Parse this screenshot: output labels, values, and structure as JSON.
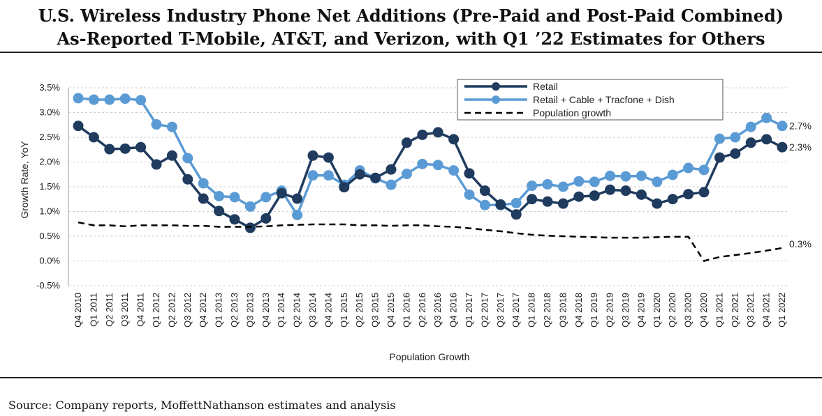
{
  "title_line1": "U.S. Wireless Industry Phone Net Additions (Pre-Paid and Post-Paid Combined)",
  "title_line2": "As-Reported T-Mobile, AT&T, and Verizon, with Q1 ’22 Estimates for Others",
  "source": "Source: Company reports, MoffettNathanson estimates and analysis",
  "colors": {
    "retail": "#1f3b5e",
    "combined": "#5b9bd5",
    "population": "#000000"
  },
  "chart_data": {
    "type": "line",
    "xlabel": "Population Growth",
    "ylabel": "Growth Rate, YoY",
    "ylim": [
      -0.5,
      3.5
    ],
    "yticks": [
      "-0.5%",
      "0.0%",
      "0.5%",
      "1.0%",
      "1.5%",
      "2.0%",
      "2.5%",
      "3.0%",
      "3.5%"
    ],
    "grid": true,
    "legend_position": "top-right",
    "categories": [
      "Q4 2010",
      "Q1 2011",
      "Q2 2011",
      "Q3 2011",
      "Q4 2011",
      "Q1 2012",
      "Q2 2012",
      "Q3 2012",
      "Q4 2012",
      "Q1 2013",
      "Q2 2013",
      "Q3 2013",
      "Q4 2013",
      "Q1 2014",
      "Q2 2014",
      "Q3 2014",
      "Q4 2014",
      "Q1 2015",
      "Q2 2015",
      "Q3 2015",
      "Q4 2015",
      "Q1 2016",
      "Q2 2016",
      "Q3 2016",
      "Q4 2016",
      "Q1 2017",
      "Q2 2017",
      "Q3 2017",
      "Q4 2017",
      "Q1 2018",
      "Q2 2018",
      "Q3 2018",
      "Q4 2018",
      "Q1 2019",
      "Q2 2019",
      "Q3 2019",
      "Q4 2019",
      "Q1 2020",
      "Q2 2020",
      "Q3 2020",
      "Q4 2020",
      "Q1 2021",
      "Q2 2021",
      "Q3 2021",
      "Q4 2021",
      "Q1 2022"
    ],
    "series": [
      {
        "name": "Retail",
        "marker": true,
        "values": [
          2.73,
          2.5,
          2.26,
          2.27,
          2.3,
          1.95,
          2.13,
          1.65,
          1.26,
          1.01,
          0.84,
          0.67,
          0.86,
          1.37,
          1.26,
          2.13,
          2.09,
          1.49,
          1.75,
          1.68,
          1.85,
          2.39,
          2.55,
          2.6,
          2.46,
          1.77,
          1.42,
          1.14,
          0.94,
          1.25,
          1.2,
          1.16,
          1.3,
          1.32,
          1.44,
          1.42,
          1.34,
          1.16,
          1.25,
          1.35,
          1.39,
          2.09,
          2.17,
          2.39,
          2.46,
          2.3
        ]
      },
      {
        "name": "Retail + Cable + Tracfone + Dish",
        "marker": true,
        "values": [
          3.29,
          3.26,
          3.26,
          3.28,
          3.25,
          2.76,
          2.71,
          2.08,
          1.57,
          1.31,
          1.29,
          1.1,
          1.29,
          1.42,
          0.93,
          1.73,
          1.73,
          1.54,
          1.83,
          1.67,
          1.54,
          1.76,
          1.96,
          1.94,
          1.83,
          1.34,
          1.13,
          1.13,
          1.17,
          1.52,
          1.55,
          1.5,
          1.61,
          1.6,
          1.72,
          1.71,
          1.72,
          1.6,
          1.74,
          1.88,
          1.84,
          2.47,
          2.5,
          2.71,
          2.89,
          2.73
        ]
      },
      {
        "name": "Population growth",
        "marker": false,
        "dashed": true,
        "values": [
          0.78,
          0.72,
          0.72,
          0.7,
          0.72,
          0.72,
          0.72,
          0.71,
          0.71,
          0.69,
          0.69,
          0.69,
          0.7,
          0.72,
          0.73,
          0.74,
          0.74,
          0.74,
          0.72,
          0.72,
          0.71,
          0.72,
          0.72,
          0.7,
          0.69,
          0.66,
          0.63,
          0.6,
          0.56,
          0.53,
          0.51,
          0.5,
          0.49,
          0.48,
          0.47,
          0.47,
          0.47,
          0.48,
          0.49,
          0.49,
          0.0,
          0.08,
          0.12,
          0.16,
          0.21,
          0.26
        ]
      }
    ],
    "end_labels": [
      "2.7%",
      "2.3%",
      "0.3%"
    ]
  }
}
